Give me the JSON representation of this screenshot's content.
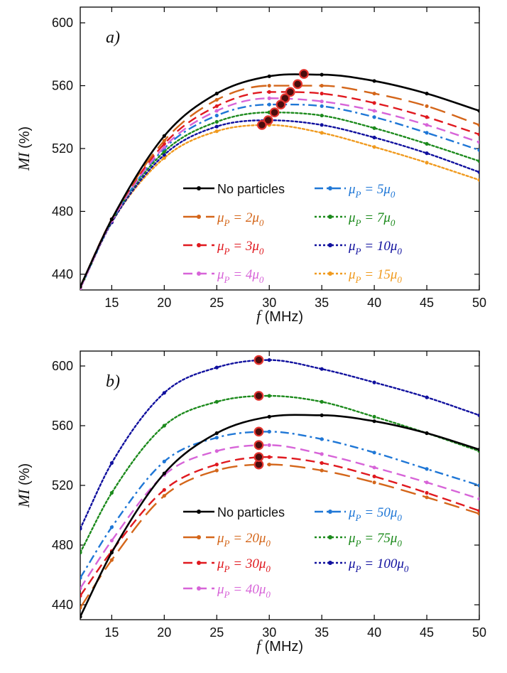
{
  "chart_data": [
    {
      "type": "line",
      "panel": "a)",
      "xlabel": "f (MHz)",
      "ylabel": "MI (%)",
      "xlim": [
        12,
        50
      ],
      "ylim": [
        430,
        610
      ],
      "xticks": [
        15,
        20,
        25,
        30,
        35,
        40,
        45,
        50
      ],
      "yticks": [
        440,
        480,
        520,
        560,
        600
      ],
      "x": [
        12,
        15,
        20,
        25,
        30,
        35,
        40,
        45,
        50
      ],
      "legend_position": "bottom-right",
      "series": [
        {
          "name": "No particles",
          "color": "#000000",
          "dash": "solid",
          "values": [
            432,
            475,
            528,
            555,
            566,
            567,
            563,
            555,
            544
          ],
          "peak": [
            33.3,
            567.5
          ]
        },
        {
          "name": "μP = 2μ0",
          "color": "#d4661a",
          "dash": "longdash",
          "values": [
            432,
            475,
            525,
            551,
            560,
            560,
            555,
            547,
            535
          ],
          "peak": [
            32.7,
            561
          ]
        },
        {
          "name": "μP = 3μ0",
          "color": "#e0191f",
          "dash": "dash",
          "values": [
            432,
            475,
            523,
            547,
            556,
            555,
            549,
            540,
            529
          ],
          "peak": [
            32.0,
            556
          ]
        },
        {
          "name": "μP = 4μ0",
          "color": "#d764d8",
          "dash": "dash",
          "values": [
            431,
            474,
            521,
            544,
            552,
            550,
            544,
            535,
            524
          ],
          "peak": [
            31.5,
            552
          ]
        },
        {
          "name": "μP = 5μ0",
          "color": "#1f77d6",
          "dash": "dashdot",
          "values": [
            431,
            474,
            520,
            541,
            548,
            547,
            540,
            530,
            519
          ],
          "peak": [
            31.1,
            548
          ]
        },
        {
          "name": "μP = 7μ0",
          "color": "#1c8a1c",
          "dash": "dot",
          "values": [
            431,
            474,
            518,
            537,
            543,
            541,
            533,
            523,
            512
          ],
          "peak": [
            30.5,
            543
          ]
        },
        {
          "name": "μP = 10μ0",
          "color": "#10109e",
          "dash": "dot",
          "values": [
            431,
            473,
            516,
            534,
            538,
            535,
            527,
            517,
            505
          ],
          "peak": [
            29.9,
            538
          ]
        },
        {
          "name": "μP = 15μ0",
          "color": "#f09a1e",
          "dash": "dot",
          "values": [
            431,
            473,
            514,
            531,
            535,
            530,
            521,
            511,
            500
          ],
          "peak": [
            29.3,
            535
          ]
        }
      ],
      "legend": [
        {
          "prefix": "No particles",
          "sub": "",
          "suffix": "",
          "sub2": "",
          "color": "#000000",
          "dash": "solid"
        },
        {
          "prefix": "μ",
          "sub": "P",
          "suffix": " = 2μ",
          "sub2": "0",
          "color": "#d4661a",
          "dash": "longdash"
        },
        {
          "prefix": "μ",
          "sub": "P",
          "suffix": " = 3μ",
          "sub2": "0",
          "color": "#e0191f",
          "dash": "dash"
        },
        {
          "prefix": "μ",
          "sub": "P",
          "suffix": " = 4μ",
          "sub2": "0",
          "color": "#d764d8",
          "dash": "dash"
        },
        {
          "prefix": "μ",
          "sub": "P",
          "suffix": " = 5μ",
          "sub2": "0",
          "color": "#1f77d6",
          "dash": "dashdot"
        },
        {
          "prefix": "μ",
          "sub": "P",
          "suffix": " = 7μ",
          "sub2": "0",
          "color": "#1c8a1c",
          "dash": "dot"
        },
        {
          "prefix": "μ",
          "sub": "P",
          "suffix": " = 10μ",
          "sub2": "0",
          "color": "#10109e",
          "dash": "dot"
        },
        {
          "prefix": "μ",
          "sub": "P",
          "suffix": " = 15μ",
          "sub2": "0",
          "color": "#f09a1e",
          "dash": "dot"
        }
      ]
    },
    {
      "type": "line",
      "panel": "b)",
      "xlabel": "f (MHz)",
      "ylabel": "MI (%)",
      "xlim": [
        12,
        50
      ],
      "ylim": [
        430,
        610
      ],
      "xticks": [
        15,
        20,
        25,
        30,
        35,
        40,
        45,
        50
      ],
      "yticks": [
        440,
        480,
        520,
        560,
        600
      ],
      "x": [
        12,
        15,
        20,
        25,
        30,
        35,
        40,
        45,
        50
      ],
      "legend_position": "bottom-right",
      "series": [
        {
          "name": "No particles",
          "color": "#000000",
          "dash": "solid",
          "values": [
            432,
            475,
            528,
            555,
            566,
            567,
            563,
            555,
            544
          ],
          "peak": null
        },
        {
          "name": "μP = 20μ0",
          "color": "#d4661a",
          "dash": "longdash",
          "values": [
            438,
            470,
            513,
            530,
            534,
            530,
            522,
            512,
            501
          ],
          "peak": [
            29,
            534
          ]
        },
        {
          "name": "μP = 30μ0",
          "color": "#e0191f",
          "dash": "dash",
          "values": [
            446,
            476,
            517,
            534,
            539,
            535,
            526,
            515,
            503
          ],
          "peak": [
            29,
            539
          ]
        },
        {
          "name": "μP = 40μ0",
          "color": "#d764d8",
          "dash": "dash",
          "values": [
            451,
            483,
            527,
            543,
            547,
            541,
            532,
            522,
            511
          ],
          "peak": [
            29,
            547
          ]
        },
        {
          "name": "μP = 50μ0",
          "color": "#1f77d6",
          "dash": "dashdot",
          "values": [
            458,
            492,
            536,
            552,
            556,
            551,
            542,
            531,
            520
          ],
          "peak": [
            29,
            556
          ]
        },
        {
          "name": "μP = 75μ0",
          "color": "#1c8a1c",
          "dash": "dot",
          "values": [
            475,
            515,
            560,
            576,
            580,
            576,
            566,
            555,
            543
          ],
          "peak": [
            29,
            580
          ]
        },
        {
          "name": "μP = 100μ0",
          "color": "#10109e",
          "dash": "dot",
          "values": [
            491,
            535,
            582,
            599,
            604,
            598,
            589,
            579,
            567
          ],
          "peak": [
            29,
            604
          ]
        }
      ],
      "legend": [
        {
          "prefix": "No particles",
          "sub": "",
          "suffix": "",
          "sub2": "",
          "color": "#000000",
          "dash": "solid"
        },
        {
          "prefix": "μ",
          "sub": "P",
          "suffix": " = 20μ",
          "sub2": "0",
          "color": "#d4661a",
          "dash": "longdash"
        },
        {
          "prefix": "μ",
          "sub": "P",
          "suffix": " = 30μ",
          "sub2": "0",
          "color": "#e0191f",
          "dash": "dash"
        },
        {
          "prefix": "μ",
          "sub": "P",
          "suffix": " = 40μ",
          "sub2": "0",
          "color": "#d764d8",
          "dash": "dash"
        },
        {
          "prefix": "μ",
          "sub": "P",
          "suffix": " = 50μ",
          "sub2": "0",
          "color": "#1f77d6",
          "dash": "dashdot"
        },
        {
          "prefix": "μ",
          "sub": "P",
          "suffix": " = 75μ",
          "sub2": "0",
          "color": "#1c8a1c",
          "dash": "dot"
        },
        {
          "prefix": "μ",
          "sub": "P",
          "suffix": " = 100μ",
          "sub2": "0",
          "color": "#10109e",
          "dash": "dot"
        }
      ]
    }
  ]
}
